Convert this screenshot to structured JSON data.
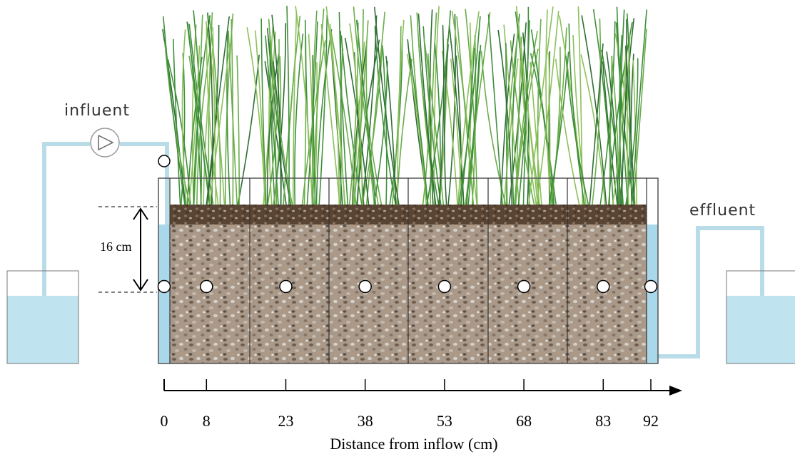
{
  "labels": {
    "influent": "influent",
    "effluent": "effluent",
    "depth": "16 cm"
  },
  "axis": {
    "title": "Distance from inflow (cm)",
    "ticks": [
      0,
      8,
      23,
      38,
      53,
      68,
      83,
      92
    ]
  }
}
